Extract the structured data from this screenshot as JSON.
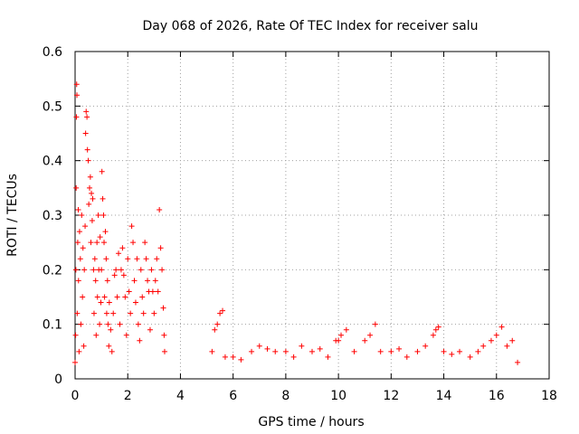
{
  "chart_data": {
    "type": "scatter",
    "title": "Day 068 of 2026, Rate Of TEC Index for receiver salu",
    "xlabel": "GPS time / hours",
    "ylabel": "ROTI / TECUs",
    "xlim": [
      0,
      18
    ],
    "ylim": [
      0,
      0.6
    ],
    "xticks": [
      0,
      2,
      4,
      6,
      8,
      10,
      12,
      14,
      16,
      18
    ],
    "yticks": [
      0,
      0.1,
      0.2,
      0.3,
      0.4,
      0.5,
      0.6
    ],
    "x_tick_labels": [
      "0",
      "2",
      "4",
      "6",
      "8",
      "10",
      "12",
      "14",
      "16",
      "18"
    ],
    "y_tick_labels": [
      "0",
      "0.1",
      "0.2",
      "0.3",
      "0.4",
      "0.5",
      "0.6"
    ],
    "grid": true,
    "marker": "+",
    "color": "#ff0000",
    "series": [
      {
        "points": [
          [
            0.0,
            0.03
          ],
          [
            0.02,
            0.08
          ],
          [
            0.03,
            0.2
          ],
          [
            0.04,
            0.35
          ],
          [
            0.05,
            0.48
          ],
          [
            0.06,
            0.54
          ],
          [
            0.07,
            0.52
          ],
          [
            0.08,
            0.12
          ],
          [
            0.1,
            0.25
          ],
          [
            0.12,
            0.31
          ],
          [
            0.13,
            0.18
          ],
          [
            0.15,
            0.05
          ],
          [
            0.17,
            0.27
          ],
          [
            0.2,
            0.22
          ],
          [
            0.22,
            0.1
          ],
          [
            0.25,
            0.3
          ],
          [
            0.28,
            0.15
          ],
          [
            0.3,
            0.24
          ],
          [
            0.33,
            0.06
          ],
          [
            0.35,
            0.2
          ],
          [
            0.38,
            0.28
          ],
          [
            0.4,
            0.45
          ],
          [
            0.42,
            0.49
          ],
          [
            0.45,
            0.48
          ],
          [
            0.47,
            0.42
          ],
          [
            0.5,
            0.4
          ],
          [
            0.52,
            0.32
          ],
          [
            0.55,
            0.35
          ],
          [
            0.58,
            0.37
          ],
          [
            0.6,
            0.25
          ],
          [
            0.62,
            0.34
          ],
          [
            0.65,
            0.29
          ],
          [
            0.67,
            0.33
          ],
          [
            0.7,
            0.2
          ],
          [
            0.72,
            0.12
          ],
          [
            0.75,
            0.22
          ],
          [
            0.78,
            0.18
          ],
          [
            0.8,
            0.08
          ],
          [
            0.83,
            0.25
          ],
          [
            0.85,
            0.15
          ],
          [
            0.88,
            0.3
          ],
          [
            0.9,
            0.2
          ],
          [
            0.93,
            0.1
          ],
          [
            0.95,
            0.26
          ],
          [
            0.98,
            0.14
          ],
          [
            1.0,
            0.2
          ],
          [
            1.02,
            0.38
          ],
          [
            1.05,
            0.33
          ],
          [
            1.08,
            0.3
          ],
          [
            1.1,
            0.25
          ],
          [
            1.12,
            0.15
          ],
          [
            1.15,
            0.27
          ],
          [
            1.18,
            0.22
          ],
          [
            1.2,
            0.12
          ],
          [
            1.23,
            0.18
          ],
          [
            1.25,
            0.1
          ],
          [
            1.28,
            0.06
          ],
          [
            1.3,
            0.14
          ],
          [
            1.35,
            0.09
          ],
          [
            1.4,
            0.05
          ],
          [
            1.45,
            0.12
          ],
          [
            1.5,
            0.19
          ],
          [
            1.55,
            0.2
          ],
          [
            1.6,
            0.15
          ],
          [
            1.65,
            0.23
          ],
          [
            1.7,
            0.1
          ],
          [
            1.75,
            0.2
          ],
          [
            1.8,
            0.24
          ],
          [
            1.85,
            0.19
          ],
          [
            1.9,
            0.15
          ],
          [
            1.95,
            0.08
          ],
          [
            2.0,
            0.22
          ],
          [
            2.05,
            0.16
          ],
          [
            2.1,
            0.12
          ],
          [
            2.15,
            0.28
          ],
          [
            2.2,
            0.25
          ],
          [
            2.25,
            0.18
          ],
          [
            2.3,
            0.14
          ],
          [
            2.35,
            0.22
          ],
          [
            2.4,
            0.1
          ],
          [
            2.45,
            0.07
          ],
          [
            2.5,
            0.2
          ],
          [
            2.55,
            0.15
          ],
          [
            2.6,
            0.12
          ],
          [
            2.65,
            0.25
          ],
          [
            2.7,
            0.22
          ],
          [
            2.75,
            0.18
          ],
          [
            2.8,
            0.16
          ],
          [
            2.85,
            0.09
          ],
          [
            2.9,
            0.2
          ],
          [
            2.95,
            0.16
          ],
          [
            3.0,
            0.12
          ],
          [
            3.05,
            0.18
          ],
          [
            3.1,
            0.22
          ],
          [
            3.15,
            0.16
          ],
          [
            3.2,
            0.31
          ],
          [
            3.25,
            0.24
          ],
          [
            3.3,
            0.2
          ],
          [
            3.35,
            0.13
          ],
          [
            3.38,
            0.08
          ],
          [
            3.4,
            0.05
          ],
          [
            5.2,
            0.05
          ],
          [
            5.3,
            0.09
          ],
          [
            5.4,
            0.1
          ],
          [
            5.5,
            0.12
          ],
          [
            5.6,
            0.125
          ],
          [
            5.7,
            0.04
          ],
          [
            6.0,
            0.04
          ],
          [
            6.3,
            0.035
          ],
          [
            6.7,
            0.05
          ],
          [
            7.0,
            0.06
          ],
          [
            7.3,
            0.055
          ],
          [
            7.6,
            0.05
          ],
          [
            8.0,
            0.05
          ],
          [
            8.3,
            0.04
          ],
          [
            8.6,
            0.06
          ],
          [
            9.0,
            0.05
          ],
          [
            9.3,
            0.055
          ],
          [
            9.6,
            0.04
          ],
          [
            9.9,
            0.07
          ],
          [
            10.0,
            0.07
          ],
          [
            10.1,
            0.08
          ],
          [
            10.3,
            0.09
          ],
          [
            10.6,
            0.05
          ],
          [
            11.0,
            0.07
          ],
          [
            11.2,
            0.08
          ],
          [
            11.4,
            0.1
          ],
          [
            11.6,
            0.05
          ],
          [
            12.0,
            0.05
          ],
          [
            12.3,
            0.055
          ],
          [
            12.6,
            0.04
          ],
          [
            13.0,
            0.05
          ],
          [
            13.3,
            0.06
          ],
          [
            13.6,
            0.08
          ],
          [
            13.7,
            0.09
          ],
          [
            13.8,
            0.095
          ],
          [
            14.0,
            0.05
          ],
          [
            14.3,
            0.045
          ],
          [
            14.6,
            0.05
          ],
          [
            15.0,
            0.04
          ],
          [
            15.3,
            0.05
          ],
          [
            15.5,
            0.06
          ],
          [
            15.8,
            0.07
          ],
          [
            16.0,
            0.08
          ],
          [
            16.2,
            0.095
          ],
          [
            16.4,
            0.06
          ],
          [
            16.6,
            0.07
          ],
          [
            16.8,
            0.03
          ]
        ]
      }
    ]
  }
}
